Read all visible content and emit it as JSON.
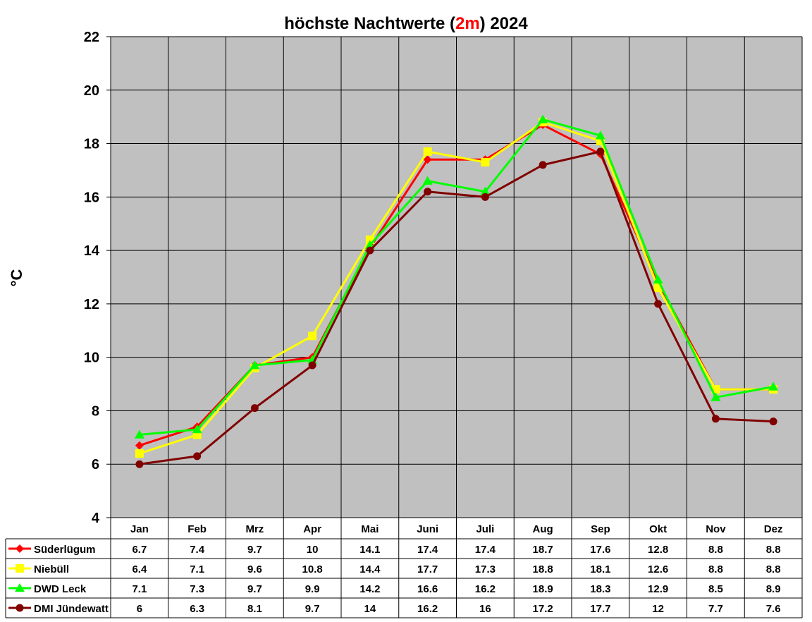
{
  "chart_data": {
    "type": "line",
    "title": {
      "prefix": "höchste Nachtwerte (",
      "highlight": "2m",
      "suffix": ") 2024",
      "highlight_color": "#ff0000"
    },
    "ylabel": "°C",
    "xlabel": "",
    "ylim": [
      4,
      22
    ],
    "yticks": [
      4,
      6,
      8,
      10,
      12,
      14,
      16,
      18,
      20,
      22
    ],
    "grid": true,
    "plot_background": "#c0c0c0",
    "legend_placement": "data-table-below",
    "categories": [
      "Jan",
      "Feb",
      "Mrz",
      "Apr",
      "Mai",
      "Juni",
      "Juli",
      "Aug",
      "Sep",
      "Okt",
      "Nov",
      "Dez"
    ],
    "series": [
      {
        "name": "Süderlügum",
        "color": "#ff0000",
        "marker": "diamond",
        "values": [
          6.7,
          7.4,
          9.7,
          10,
          14.1,
          17.4,
          17.4,
          18.7,
          17.6,
          12.8,
          8.8,
          8.8
        ],
        "labels": [
          "6.7",
          "7.4",
          "9.7",
          "10",
          "14.1",
          "17.4",
          "17.4",
          "18.7",
          "17.6",
          "12.8",
          "8.8",
          "8.8"
        ]
      },
      {
        "name": "Niebüll",
        "color": "#ffff00",
        "marker": "square",
        "values": [
          6.4,
          7.1,
          9.6,
          10.8,
          14.4,
          17.7,
          17.3,
          18.8,
          18.1,
          12.6,
          8.8,
          8.8
        ],
        "labels": [
          "6.4",
          "7.1",
          "9.6",
          "10.8",
          "14.4",
          "17.7",
          "17.3",
          "18.8",
          "18.1",
          "12.6",
          "8.8",
          "8.8"
        ]
      },
      {
        "name": "DWD Leck",
        "color": "#00ff00",
        "marker": "triangle",
        "values": [
          7.1,
          7.3,
          9.7,
          9.9,
          14.2,
          16.6,
          16.2,
          18.9,
          18.3,
          12.9,
          8.5,
          8.9
        ],
        "labels": [
          "7.1",
          "7.3",
          "9.7",
          "9.9",
          "14.2",
          "16.6",
          "16.2",
          "18.9",
          "18.3",
          "12.9",
          "8.5",
          "8.9"
        ]
      },
      {
        "name": "DMI Jündewatt",
        "color": "#800000",
        "marker": "circle",
        "values": [
          6,
          6.3,
          8.1,
          9.7,
          14,
          16.2,
          16,
          17.2,
          17.7,
          12,
          7.7,
          7.6
        ],
        "labels": [
          "6",
          "6.3",
          "8.1",
          "9.7",
          "14",
          "16.2",
          "16",
          "17.2",
          "17.7",
          "12",
          "7.7",
          "7.6"
        ]
      }
    ]
  }
}
